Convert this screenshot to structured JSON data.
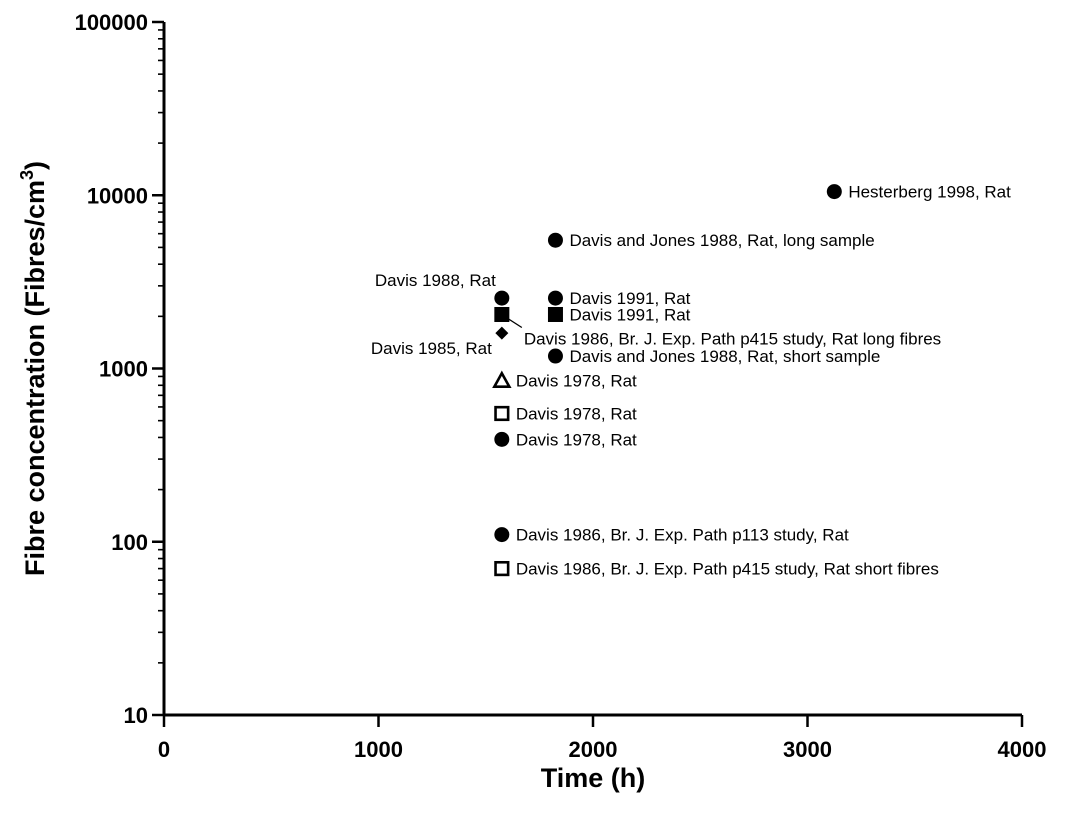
{
  "chart_data": {
    "type": "scatter",
    "xlabel": "Time (h)",
    "ylabel": "Fibre concentration (Fibres/cm",
    "ylabel_superscript": "3",
    "ylabel_close": ")",
    "xlim": [
      0,
      4000
    ],
    "ylim": [
      10,
      100000
    ],
    "yscale": "log",
    "grid": false,
    "x_ticks": [
      {
        "value": 0,
        "label": "0"
      },
      {
        "value": 1000,
        "label": "1000"
      },
      {
        "value": 2000,
        "label": "2000"
      },
      {
        "value": 3000,
        "label": "3000"
      },
      {
        "value": 4000,
        "label": "4000"
      }
    ],
    "y_ticks": [
      {
        "value": 10,
        "label": "10"
      },
      {
        "value": 100,
        "label": "100"
      },
      {
        "value": 1000,
        "label": "1000"
      },
      {
        "value": 10000,
        "label": "10000"
      },
      {
        "value": 100000,
        "label": "100000"
      }
    ],
    "points": [
      {
        "x": 3125,
        "y": 10500,
        "marker": "circle",
        "label": "Hesterberg 1998, Rat",
        "label_side": "right"
      },
      {
        "x": 1825,
        "y": 5500,
        "marker": "circle",
        "label": "Davis and Jones 1988, Rat, long sample",
        "label_side": "right"
      },
      {
        "x": 1575,
        "y": 2550,
        "marker": "circle",
        "label": "Davis 1988, Rat",
        "label_side": "above-left"
      },
      {
        "x": 1825,
        "y": 2550,
        "marker": "circle",
        "label": "Davis 1991, Rat",
        "label_side": "right"
      },
      {
        "x": 1575,
        "y": 2050,
        "marker": "square-filled",
        "label": "",
        "label_side": "none"
      },
      {
        "x": 1825,
        "y": 2050,
        "marker": "square-filled",
        "label": "Davis 1991, Rat",
        "label_side": "right"
      },
      {
        "x": 1575,
        "y": 1600,
        "marker": "diamond",
        "label": "Davis 1985, Rat",
        "label_side": "below-left"
      },
      {
        "x": 1825,
        "y": 1180,
        "marker": "circle",
        "label": "Davis and Jones 1988, Rat, short sample",
        "label_side": "right"
      },
      {
        "x": 1575,
        "y": 850,
        "marker": "triangle-open",
        "label": "Davis 1978, Rat",
        "label_side": "right"
      },
      {
        "x": 1575,
        "y": 550,
        "marker": "square-open",
        "label": "Davis 1978, Rat",
        "label_side": "right"
      },
      {
        "x": 1575,
        "y": 390,
        "marker": "circle",
        "label": "Davis 1978, Rat",
        "label_side": "right"
      },
      {
        "x": 1575,
        "y": 110,
        "marker": "circle",
        "label": "Davis 1986, Br. J. Exp. Path p113 study, Rat",
        "label_side": "right"
      },
      {
        "x": 1575,
        "y": 70,
        "marker": "square-open",
        "label": "Davis 1986, Br. J. Exp. Path p415 study, Rat short fibres",
        "label_side": "right"
      }
    ],
    "callouts": [
      {
        "from_x": 1575,
        "from_y": 2050,
        "label": "Davis 1986, Br. J. Exp. Path p415 study, Rat long fibres"
      }
    ]
  }
}
